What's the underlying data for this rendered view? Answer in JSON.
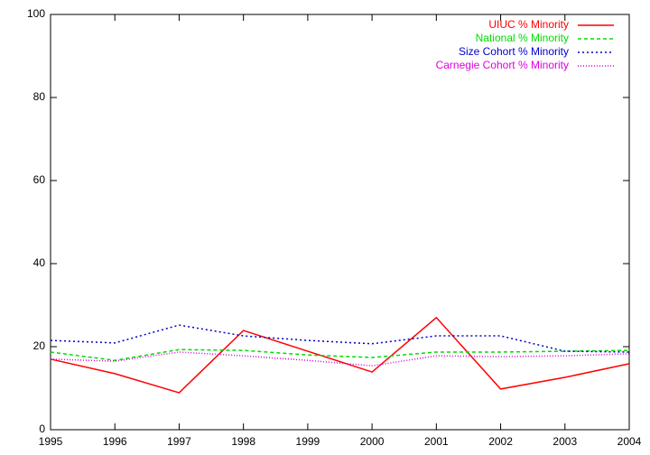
{
  "chart_data": {
    "type": "line",
    "x": [
      1995,
      1996,
      1997,
      1998,
      1999,
      2000,
      2001,
      2002,
      2003,
      2004
    ],
    "series": [
      {
        "name": "UIUC % Minority",
        "color": "#ff0000",
        "dash": "none",
        "values": [
          17.0,
          13.5,
          8.9,
          23.9,
          18.9,
          13.9,
          27.0,
          9.8,
          12.6,
          15.9
        ]
      },
      {
        "name": "National % Minority",
        "color": "#00dd00",
        "dash": "4,3",
        "values": [
          18.7,
          16.7,
          19.3,
          19.1,
          18.0,
          17.4,
          18.7,
          18.7,
          18.9,
          19.1
        ]
      },
      {
        "name": "Size Cohort % Minority",
        "color": "#0000cc",
        "dash": "2,3",
        "values": [
          21.5,
          20.9,
          25.2,
          22.6,
          21.5,
          20.7,
          22.6,
          22.6,
          18.9,
          18.7
        ]
      },
      {
        "name": "Carnegie Cohort % Minority",
        "color": "#dd00dd",
        "dash": "1,2",
        "values": [
          17.0,
          16.5,
          18.7,
          17.8,
          16.7,
          15.4,
          17.8,
          17.6,
          17.8,
          18.3
        ]
      }
    ],
    "xlim": [
      1995,
      2004
    ],
    "xticks": [
      1995,
      1996,
      1997,
      1998,
      1999,
      2000,
      2001,
      2002,
      2003,
      2004
    ],
    "ylim": [
      0,
      100
    ],
    "yticks": [
      0,
      20,
      40,
      60,
      80,
      100
    ],
    "legend": "top-right"
  }
}
